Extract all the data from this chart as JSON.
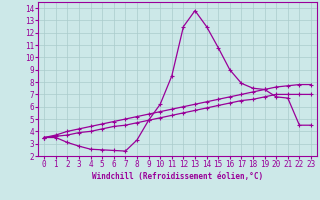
{
  "xlabel": "Windchill (Refroidissement éolien,°C)",
  "bg_color": "#cce8e8",
  "grid_color": "#aacccc",
  "line_color": "#990099",
  "xlim": [
    -0.5,
    23.5
  ],
  "ylim": [
    2,
    14.5
  ],
  "xticks": [
    0,
    1,
    2,
    3,
    4,
    5,
    6,
    7,
    8,
    9,
    10,
    11,
    12,
    13,
    14,
    15,
    16,
    17,
    18,
    19,
    20,
    21,
    22,
    23
  ],
  "yticks": [
    2,
    3,
    4,
    5,
    6,
    7,
    8,
    9,
    10,
    11,
    12,
    13,
    14
  ],
  "line1_x": [
    0,
    1,
    2,
    3,
    4,
    5,
    6,
    7,
    8,
    9,
    10,
    11,
    12,
    13,
    14,
    15,
    16,
    17,
    18,
    19,
    20,
    21,
    22,
    23
  ],
  "line1_y": [
    3.5,
    3.6,
    3.7,
    3.9,
    4.0,
    4.2,
    4.4,
    4.5,
    4.7,
    4.9,
    5.1,
    5.3,
    5.5,
    5.7,
    5.9,
    6.1,
    6.3,
    6.5,
    6.6,
    6.8,
    7.0,
    7.0,
    7.0,
    7.0
  ],
  "line2_x": [
    0,
    1,
    2,
    3,
    4,
    5,
    6,
    7,
    8,
    9,
    10,
    11,
    12,
    13,
    14,
    15,
    16,
    17,
    18,
    19,
    20,
    21,
    22,
    23
  ],
  "line2_y": [
    3.5,
    3.7,
    4.0,
    4.2,
    4.4,
    4.6,
    4.8,
    5.0,
    5.2,
    5.4,
    5.6,
    5.8,
    6.0,
    6.2,
    6.4,
    6.6,
    6.8,
    7.0,
    7.2,
    7.4,
    7.6,
    7.7,
    7.8,
    7.8
  ],
  "line3_x": [
    0,
    1,
    2,
    3,
    4,
    5,
    6,
    7,
    8,
    9,
    10,
    11,
    12,
    13,
    14,
    15,
    16,
    17,
    18,
    19,
    20,
    21,
    22,
    23
  ],
  "line3_y": [
    3.5,
    3.5,
    3.1,
    2.8,
    2.55,
    2.5,
    2.45,
    2.4,
    3.3,
    4.9,
    6.2,
    8.5,
    12.5,
    13.8,
    12.5,
    10.8,
    9.0,
    7.9,
    7.5,
    7.4,
    6.8,
    6.7,
    4.5,
    4.5
  ]
}
